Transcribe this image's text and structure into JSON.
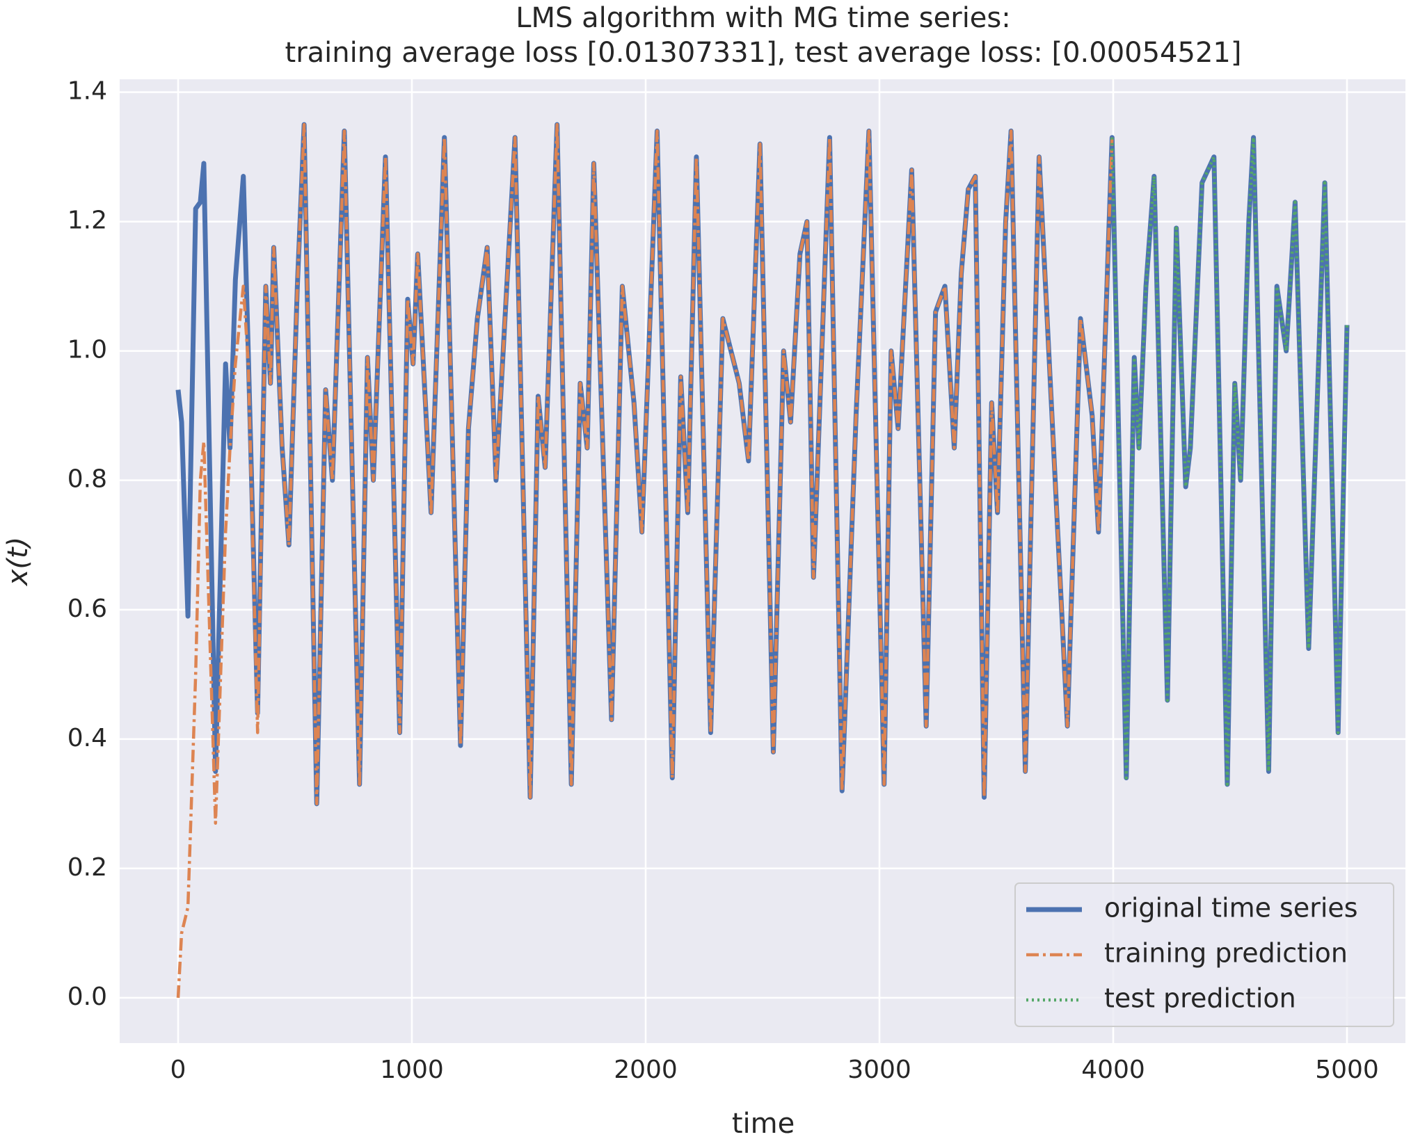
{
  "chart_data": {
    "type": "line",
    "title": [
      "LMS algorithm with MG time series:",
      "training average loss [0.01307331], test average loss: [0.00054521]"
    ],
    "xlabel": "time",
    "ylabel": "x(t)",
    "xlim": [
      -250,
      5250
    ],
    "ylim": [
      -0.07,
      1.42
    ],
    "xticks": [
      0,
      1000,
      2000,
      3000,
      4000,
      5000
    ],
    "yticks": [
      {
        "value": 0,
        "label": "0.0"
      },
      0.2,
      0.4,
      0.6,
      0.8,
      {
        "value": 1,
        "label": "1.0"
      },
      1.2,
      1.4
    ],
    "grid": true,
    "background": "#eaeaf2",
    "legend": "lower right",
    "x": [
      0,
      15,
      42,
      75,
      95,
      110,
      160,
      203,
      222,
      245,
      279,
      300,
      340,
      375,
      395,
      409,
      445,
      474,
      510,
      539,
      593,
      631,
      660,
      711,
      776,
      810,
      835,
      887,
      948,
      982,
      1005,
      1025,
      1082,
      1139,
      1208,
      1242,
      1280,
      1322,
      1360,
      1441,
      1506,
      1540,
      1570,
      1621,
      1682,
      1720,
      1750,
      1778,
      1854,
      1900,
      1950,
      1984,
      2049,
      2114,
      2150,
      2180,
      2217,
      2278,
      2330,
      2400,
      2440,
      2489,
      2546,
      2590,
      2620,
      2660,
      2690,
      2718,
      2787,
      2840,
      2900,
      2955,
      3020,
      3050,
      3080,
      3138,
      3200,
      3240,
      3280,
      3320,
      3350,
      3380,
      3410,
      3448,
      3480,
      3505,
      3540,
      3563,
      3624,
      3683,
      3804,
      3860,
      3910,
      3937,
      3995,
      4056,
      4090,
      4110,
      4140,
      4175,
      4232,
      4270,
      4310,
      4330,
      4380,
      4431,
      4488,
      4520,
      4545,
      4580,
      4600,
      4665,
      4700,
      4740,
      4778,
      4836,
      4905,
      4962,
      5000
    ],
    "series": [
      {
        "name": "original time series",
        "color": "#4c72b0",
        "linestyle": "solid",
        "values": [
          0.94,
          0.89,
          0.59,
          1.22,
          1.23,
          1.29,
          0.35,
          0.98,
          0.85,
          1.11,
          1.27,
          1.0,
          0.44,
          1.1,
          0.95,
          1.16,
          0.85,
          0.7,
          1.1,
          1.35,
          0.3,
          0.94,
          0.8,
          1.34,
          0.33,
          0.99,
          0.8,
          1.3,
          0.41,
          1.08,
          0.98,
          1.15,
          0.75,
          1.33,
          0.39,
          0.88,
          1.05,
          1.16,
          0.8,
          1.33,
          0.31,
          0.93,
          0.82,
          1.35,
          0.33,
          0.95,
          0.85,
          1.29,
          0.43,
          1.1,
          0.92,
          0.72,
          1.34,
          0.34,
          0.96,
          0.75,
          1.3,
          0.41,
          1.05,
          0.95,
          0.83,
          1.32,
          0.38,
          1.0,
          0.89,
          1.15,
          1.2,
          0.65,
          1.33,
          0.32,
          0.9,
          1.34,
          0.33,
          1.0,
          0.88,
          1.28,
          0.42,
          1.06,
          1.1,
          0.85,
          1.12,
          1.25,
          1.27,
          0.31,
          0.92,
          0.75,
          1.2,
          1.34,
          0.35,
          1.3,
          0.42,
          1.05,
          0.9,
          0.72,
          1.33,
          0.34,
          0.99,
          0.85,
          1.1,
          1.27,
          0.46,
          1.19,
          0.79,
          0.85,
          1.26,
          1.3,
          0.33,
          0.95,
          0.8,
          1.2,
          1.33,
          0.35,
          1.1,
          1.0,
          1.23,
          0.54,
          1.26,
          0.41,
          1.04
        ]
      },
      {
        "name": "training prediction",
        "color": "#dd8452",
        "linestyle": "dashdot",
        "values": [
          0.0,
          0.1,
          0.14,
          0.5,
          0.8,
          0.86,
          0.27,
          0.72,
          0.85,
          0.98,
          1.1,
          0.98,
          0.41,
          1.1,
          0.95,
          1.16,
          0.85,
          0.7,
          1.1,
          1.35,
          0.3,
          0.94,
          0.8,
          1.34,
          0.33,
          0.99,
          0.8,
          1.3,
          0.41,
          1.08,
          0.98,
          1.15,
          0.75,
          1.33,
          0.39,
          0.88,
          1.05,
          1.16,
          0.8,
          1.33,
          0.31,
          0.93,
          0.82,
          1.35,
          0.33,
          0.95,
          0.85,
          1.29,
          0.43,
          1.1,
          0.92,
          0.72,
          1.34,
          0.34,
          0.96,
          0.75,
          1.3,
          0.41,
          1.05,
          0.95,
          0.83,
          1.32,
          0.38,
          1.0,
          0.89,
          1.15,
          1.2,
          0.65,
          1.33,
          0.32,
          0.9,
          1.34,
          0.33,
          1.0,
          0.88,
          1.28,
          0.42,
          1.06,
          1.1,
          0.85,
          1.12,
          1.25,
          1.27,
          0.31,
          0.92,
          0.75,
          1.2,
          1.34,
          0.35,
          1.3,
          0.42,
          1.05,
          0.9,
          0.72,
          1.33,
          null,
          null,
          null,
          null,
          null,
          null,
          null,
          null,
          null,
          null,
          null,
          null,
          null,
          null,
          null,
          null,
          null,
          null,
          null,
          null,
          null,
          null,
          null,
          null
        ]
      },
      {
        "name": "test prediction",
        "color": "#55a868",
        "linestyle": "dotted",
        "values": [
          null,
          null,
          null,
          null,
          null,
          null,
          null,
          null,
          null,
          null,
          null,
          null,
          null,
          null,
          null,
          null,
          null,
          null,
          null,
          null,
          null,
          null,
          null,
          null,
          null,
          null,
          null,
          null,
          null,
          null,
          null,
          null,
          null,
          null,
          null,
          null,
          null,
          null,
          null,
          null,
          null,
          null,
          null,
          null,
          null,
          null,
          null,
          null,
          null,
          null,
          null,
          null,
          null,
          null,
          null,
          null,
          null,
          null,
          null,
          null,
          null,
          null,
          null,
          null,
          null,
          null,
          null,
          null,
          null,
          null,
          null,
          null,
          null,
          null,
          null,
          null,
          null,
          null,
          null,
          null,
          null,
          null,
          null,
          null,
          null,
          null,
          null,
          null,
          null,
          null,
          null,
          null,
          null,
          null,
          1.33,
          0.34,
          0.99,
          0.85,
          1.1,
          1.27,
          0.46,
          1.19,
          0.79,
          0.85,
          1.26,
          1.3,
          0.33,
          0.95,
          0.8,
          1.2,
          1.33,
          0.35,
          1.1,
          1.0,
          1.23,
          0.54,
          1.26,
          0.41,
          1.04
        ]
      }
    ]
  }
}
